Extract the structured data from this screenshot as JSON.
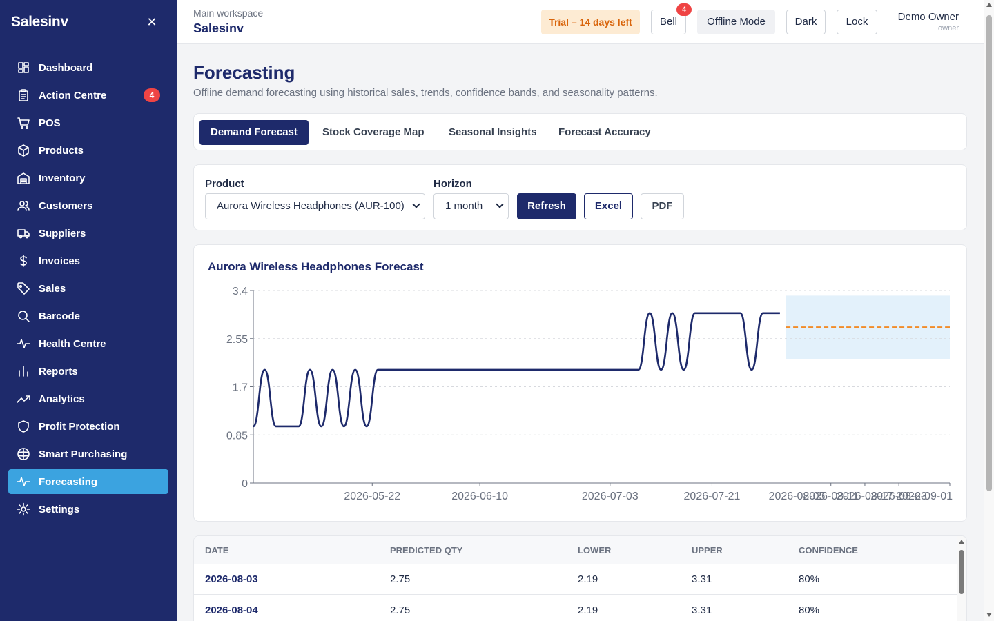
{
  "sidebar": {
    "brand": "Salesinv",
    "close_icon": "close-icon",
    "items": [
      {
        "label": "Dashboard",
        "icon": "dashboard-icon"
      },
      {
        "label": "Action Centre",
        "icon": "clipboard-icon",
        "badge": "4"
      },
      {
        "label": "POS",
        "icon": "cart-icon"
      },
      {
        "label": "Products",
        "icon": "box-icon"
      },
      {
        "label": "Inventory",
        "icon": "warehouse-icon"
      },
      {
        "label": "Customers",
        "icon": "users-icon"
      },
      {
        "label": "Suppliers",
        "icon": "truck-icon"
      },
      {
        "label": "Invoices",
        "icon": "dollar-icon"
      },
      {
        "label": "Sales",
        "icon": "tag-icon"
      },
      {
        "label": "Barcode",
        "icon": "search-icon"
      },
      {
        "label": "Health Centre",
        "icon": "pulse-icon"
      },
      {
        "label": "Reports",
        "icon": "bar-chart-icon"
      },
      {
        "label": "Analytics",
        "icon": "trend-icon"
      },
      {
        "label": "Profit Protection",
        "icon": "shield-icon"
      },
      {
        "label": "Smart Purchasing",
        "icon": "brain-icon"
      },
      {
        "label": "Forecasting",
        "icon": "pulse-icon",
        "active": true
      },
      {
        "label": "Settings",
        "icon": "gear-icon"
      }
    ]
  },
  "topbar": {
    "workspace_label": "Main workspace",
    "workspace_name": "Salesinv",
    "trial": "Trial – 14 days left",
    "bell_label": "Bell",
    "bell_badge": "4",
    "offline_label": "Offline Mode",
    "dark_label": "Dark",
    "lock_label": "Lock",
    "user_name": "Demo Owner",
    "user_role": "owner"
  },
  "colors": {
    "sidebar_bg": "#1e2a6b",
    "active_item": "#3ba3e0",
    "line": "#1e2a6b",
    "forecast_line": "#f28c28",
    "band": "#e3f1fb"
  },
  "page": {
    "title": "Forecasting",
    "subtitle": "Offline demand forecasting using historical sales, trends, confidence bands, and seasonality patterns."
  },
  "tabs": [
    "Demand Forecast",
    "Stock Coverage Map",
    "Seasonal Insights",
    "Forecast Accuracy"
  ],
  "filters": {
    "product_label": "Product",
    "product_value": "Aurora Wireless Headphones (AUR-100)",
    "horizon_label": "Horizon",
    "horizon_value": "1 month",
    "refresh": "Refresh",
    "excel": "Excel",
    "pdf": "PDF"
  },
  "chart_data": {
    "type": "line",
    "title": "Aurora Wireless Headphones Forecast",
    "ylim": [
      0,
      3.4
    ],
    "y_ticks": [
      "3.4",
      "2.55",
      "1.7",
      "0.85",
      "0"
    ],
    "x_ticks": [
      "2026-05-22",
      "2026-06-10",
      "2026-07-03",
      "2026-07-21",
      "2026-08-05",
      "2026-08-11",
      "2026-08-17",
      "2026-08-23",
      "2026-09-01"
    ],
    "grid": true,
    "history": {
      "x": [
        "2026-05-01",
        "2026-05-03",
        "2026-05-05",
        "2026-05-07",
        "2026-05-09",
        "2026-05-11",
        "2026-05-13",
        "2026-05-15",
        "2026-05-17",
        "2026-05-19",
        "2026-05-21",
        "2026-05-23",
        "2026-05-25",
        "2026-05-27",
        "2026-05-29",
        "2026-05-31",
        "2026-06-02",
        "2026-06-10",
        "2026-06-20",
        "2026-06-30",
        "2026-07-08",
        "2026-07-10",
        "2026-07-12",
        "2026-07-14",
        "2026-07-16",
        "2026-07-18",
        "2026-07-20",
        "2026-07-22",
        "2026-07-24",
        "2026-07-26",
        "2026-07-28",
        "2026-07-30",
        "2026-08-02"
      ],
      "y": [
        1,
        2,
        1,
        1,
        1,
        2,
        1,
        2,
        1,
        2,
        1,
        2,
        2,
        2,
        2,
        2,
        2,
        2,
        2,
        2,
        2,
        3,
        2,
        3,
        2,
        3,
        3,
        3,
        3,
        3,
        2,
        3,
        3
      ]
    },
    "forecast": {
      "start": "2026-08-03",
      "end": "2026-09-01",
      "predicted": 2.75,
      "lower": 2.19,
      "upper": 3.31
    }
  },
  "table": {
    "headers": [
      "DATE",
      "PREDICTED QTY",
      "LOWER",
      "UPPER",
      "CONFIDENCE"
    ],
    "rows": [
      [
        "2026-08-03",
        "2.75",
        "2.19",
        "3.31",
        "80%"
      ],
      [
        "2026-08-04",
        "2.75",
        "2.19",
        "3.31",
        "80%"
      ]
    ]
  }
}
